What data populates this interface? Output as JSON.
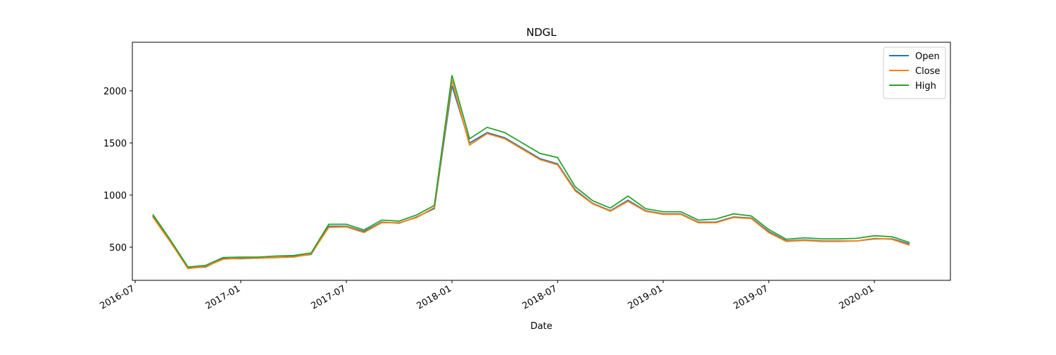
{
  "chart_data": {
    "type": "line",
    "title": "NDGL",
    "xlabel": "Date",
    "x": [
      "2016-08",
      "2016-09",
      "2016-10",
      "2016-11",
      "2016-12",
      "2017-01",
      "2017-02",
      "2017-03",
      "2017-04",
      "2017-05",
      "2017-06",
      "2017-07",
      "2017-08",
      "2017-09",
      "2017-10",
      "2017-11",
      "2017-12",
      "2018-01",
      "2018-02",
      "2018-03",
      "2018-04",
      "2018-05",
      "2018-06",
      "2018-07",
      "2018-08",
      "2018-09",
      "2018-10",
      "2018-11",
      "2018-12",
      "2019-01",
      "2019-02",
      "2019-03",
      "2019-04",
      "2019-05",
      "2019-06",
      "2019-07",
      "2019-08",
      "2019-09",
      "2019-10",
      "2019-11",
      "2019-12",
      "2020-01",
      "2020-02",
      "2020-03"
    ],
    "series": [
      {
        "name": "Open",
        "color": "#1f77b4",
        "values": [
          800,
          560,
          300,
          310,
          390,
          390,
          395,
          400,
          410,
          430,
          700,
          700,
          650,
          740,
          730,
          790,
          870,
          2050,
          1500,
          1600,
          1550,
          1450,
          1350,
          1300,
          1050,
          920,
          850,
          950,
          850,
          820,
          820,
          740,
          740,
          790,
          780,
          650,
          560,
          570,
          560,
          560,
          560,
          580,
          580,
          530
        ]
      },
      {
        "name": "Close",
        "color": "#ff7f0e",
        "values": [
          790,
          550,
          295,
          315,
          385,
          395,
          395,
          400,
          405,
          435,
          690,
          695,
          640,
          735,
          735,
          785,
          880,
          2100,
          1480,
          1590,
          1540,
          1440,
          1340,
          1290,
          1040,
          915,
          845,
          940,
          845,
          815,
          815,
          735,
          735,
          785,
          775,
          640,
          555,
          565,
          555,
          555,
          560,
          585,
          575,
          520
        ]
      },
      {
        "name": "High",
        "color": "#2ca02c",
        "values": [
          815,
          570,
          310,
          325,
          400,
          405,
          405,
          415,
          420,
          445,
          720,
          720,
          665,
          760,
          750,
          810,
          900,
          2150,
          1540,
          1650,
          1600,
          1500,
          1400,
          1360,
          1080,
          945,
          875,
          990,
          870,
          840,
          840,
          760,
          770,
          820,
          800,
          670,
          575,
          590,
          580,
          580,
          585,
          610,
          600,
          545
        ]
      }
    ],
    "xlim": [
      "2016-07",
      "2020-05"
    ],
    "xticks": [
      "2016-07",
      "2017-01",
      "2017-07",
      "2018-01",
      "2018-07",
      "2019-01",
      "2019-07",
      "2020-01"
    ],
    "ylim": [
      182,
      2466
    ],
    "yticks": [
      500,
      1000,
      1500,
      2000
    ],
    "legend": "upper right"
  }
}
